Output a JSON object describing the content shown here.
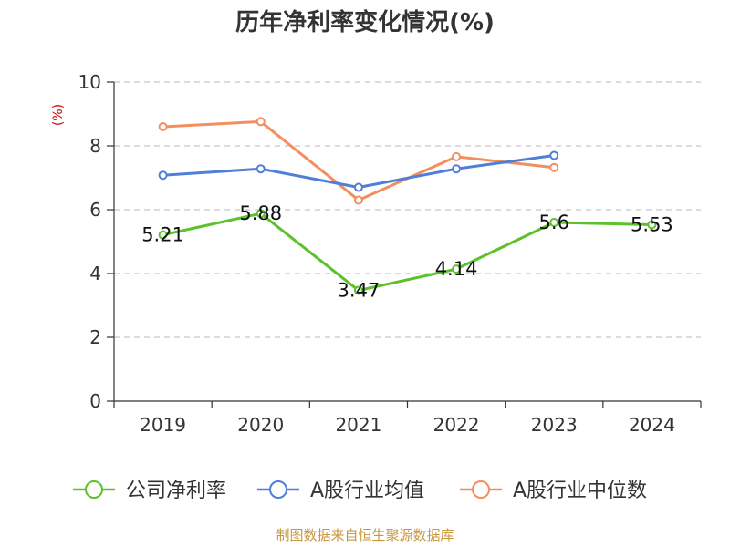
{
  "chart_data": {
    "type": "line",
    "title": "历年净利率变化情况(%)",
    "ylabel": "(%)",
    "xlabel": "",
    "categories": [
      "2019",
      "2020",
      "2021",
      "2022",
      "2023",
      "2024"
    ],
    "ylim": [
      0,
      10
    ],
    "yticks": [
      0,
      2,
      4,
      6,
      8,
      10
    ],
    "grid": "horizontal-dashed",
    "legend_position": "bottom",
    "series": [
      {
        "name": "公司净利率",
        "color": "#5cc12a",
        "labels": true,
        "values": [
          5.21,
          5.88,
          3.47,
          4.14,
          5.6,
          5.53
        ]
      },
      {
        "name": "A股行业均值",
        "color": "#4f7fd9",
        "labels": false,
        "values": [
          7.08,
          7.28,
          6.7,
          7.28,
          7.7,
          null
        ]
      },
      {
        "name": "A股行业中位数",
        "color": "#f48e5e",
        "labels": false,
        "values": [
          8.6,
          8.76,
          6.3,
          7.66,
          7.32,
          null
        ]
      }
    ]
  },
  "footer": {
    "source": "制图数据来自恒生聚源数据库"
  }
}
